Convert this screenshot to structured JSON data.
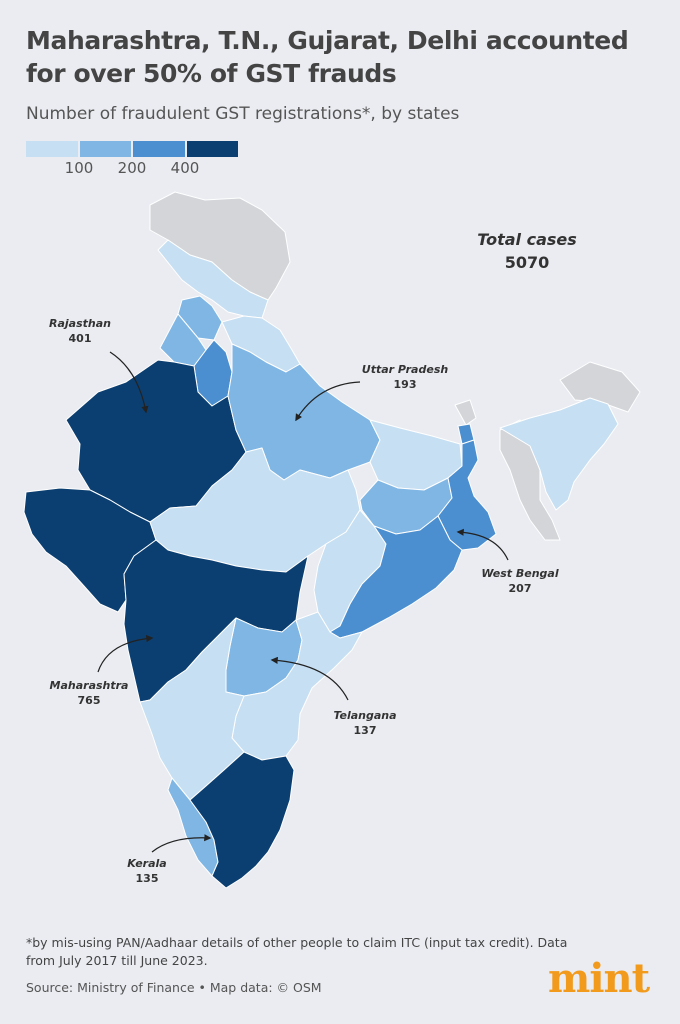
{
  "header": {
    "title": "Maharashtra, T.N., Gujarat, Delhi accounted for over 50% of GST frauds",
    "subtitle": "Number of fraudulent GST registrations*, by states"
  },
  "legend": {
    "ticks": [
      "100",
      "200",
      "400"
    ],
    "colors": [
      "#c6dff2",
      "#7fb6e4",
      "#4c8fd0",
      "#0c3f71"
    ]
  },
  "total": {
    "label": "Total cases",
    "value": "5070"
  },
  "callouts": [
    {
      "name": "Rajasthan",
      "value": "401"
    },
    {
      "name": "Uttar Pradesh",
      "value": "193"
    },
    {
      "name": "West Bengal",
      "value": "207"
    },
    {
      "name": "Maharashtra",
      "value": "765"
    },
    {
      "name": "Telangana",
      "value": "137"
    },
    {
      "name": "Kerala",
      "value": "135"
    }
  ],
  "colors": {
    "no_data": "#d3d5d9",
    "border": "#ffffff"
  },
  "footnote": "*by mis-using PAN/Aadhaar details of other people to claim ITC (input tax credit). Data from July 2017 till June 2023.",
  "source": "Source: Ministry of Finance • Map data: © OSM",
  "logo": "mint"
}
